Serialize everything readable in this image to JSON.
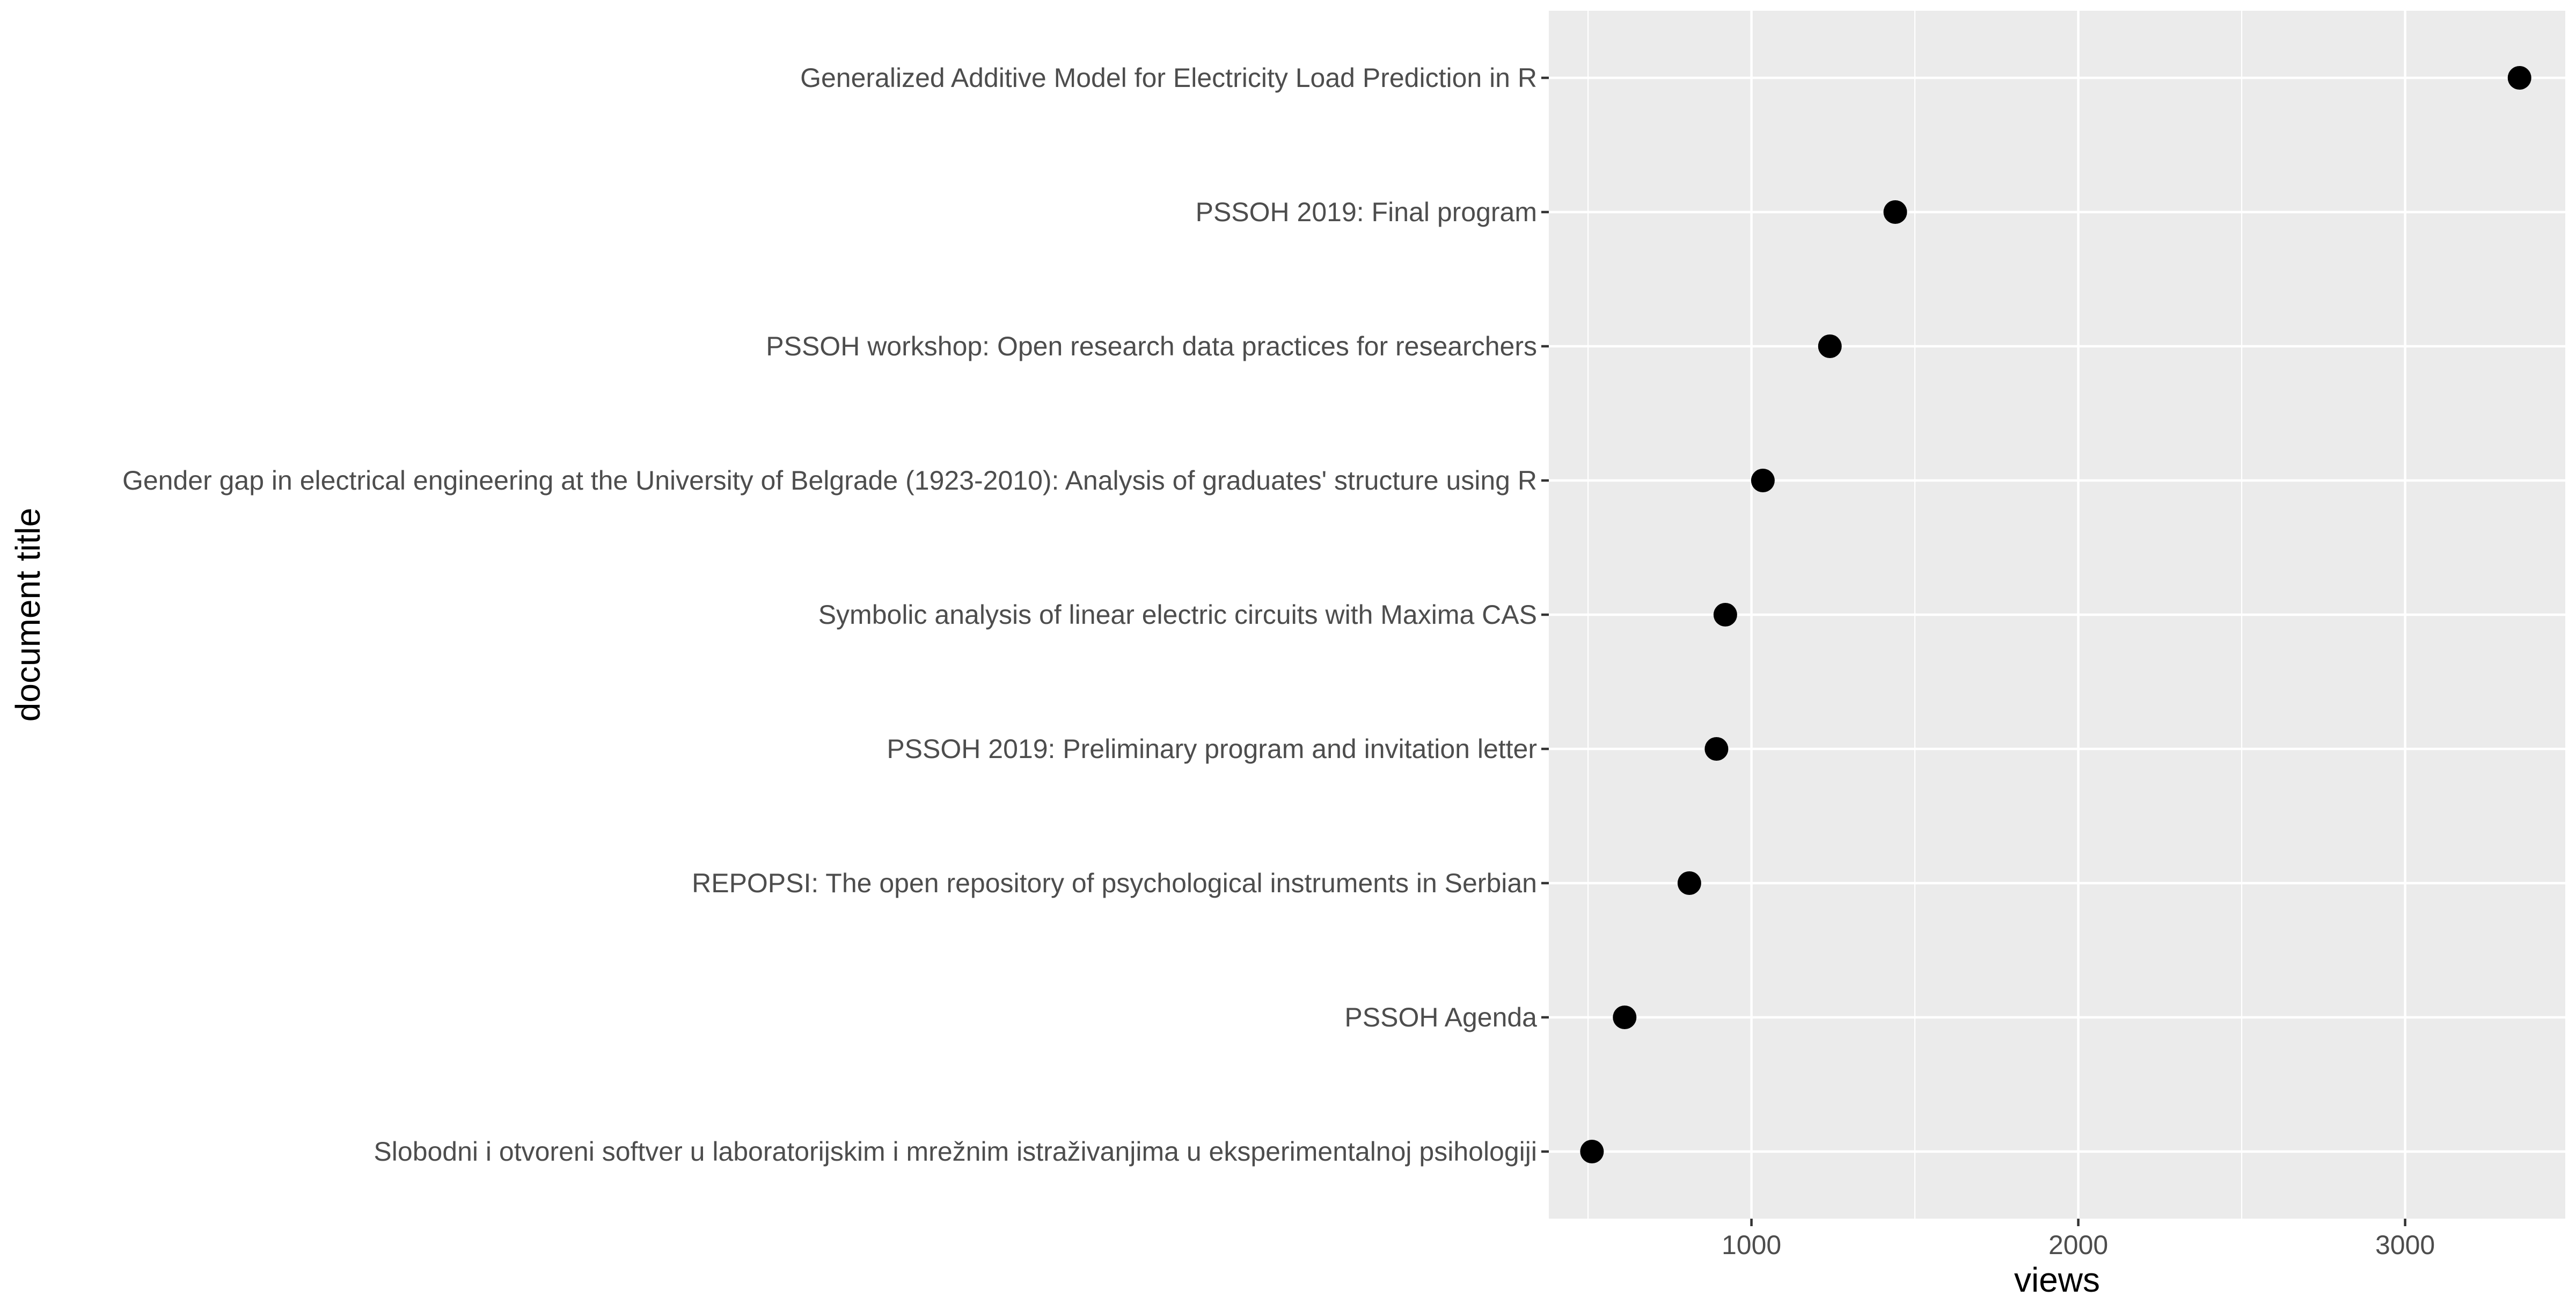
{
  "chart_data": {
    "type": "scatter",
    "orientation": "horizontal",
    "xlabel": "views",
    "ylabel": "document title",
    "xlim": [
      380,
      3490
    ],
    "xticks": [
      1000,
      2000,
      3000
    ],
    "xticks_minor": [
      500,
      1500,
      2500
    ],
    "grid": true,
    "legend": "none",
    "panel_color": "#ebebeb",
    "point_color": "#000000",
    "points": [
      {
        "label": "Generalized Additive Model for Electricity Load Prediction in R",
        "value": 3350
      },
      {
        "label": "PSSOH 2019: Final program",
        "value": 1440
      },
      {
        "label": "PSSOH workshop: Open research data practices for researchers",
        "value": 1240
      },
      {
        "label": "Gender gap in electrical engineering at the University of Belgrade (1923-2010): Analysis of graduates' structure using R",
        "value": 1035
      },
      {
        "label": "Symbolic analysis of linear electric circuits with Maxima CAS",
        "value": 920
      },
      {
        "label": "PSSOH 2019: Preliminary program and invitation letter",
        "value": 893
      },
      {
        "label": "REPOPSI: The open repository of psychological instruments in Serbian",
        "value": 810
      },
      {
        "label": "PSSOH Agenda",
        "value": 612
      },
      {
        "label": "Slobodni i otvoreni softver u laboratorijskim i mrežnim istraživanjima u eksperimentalnoj psihologiji",
        "value": 512
      }
    ]
  }
}
